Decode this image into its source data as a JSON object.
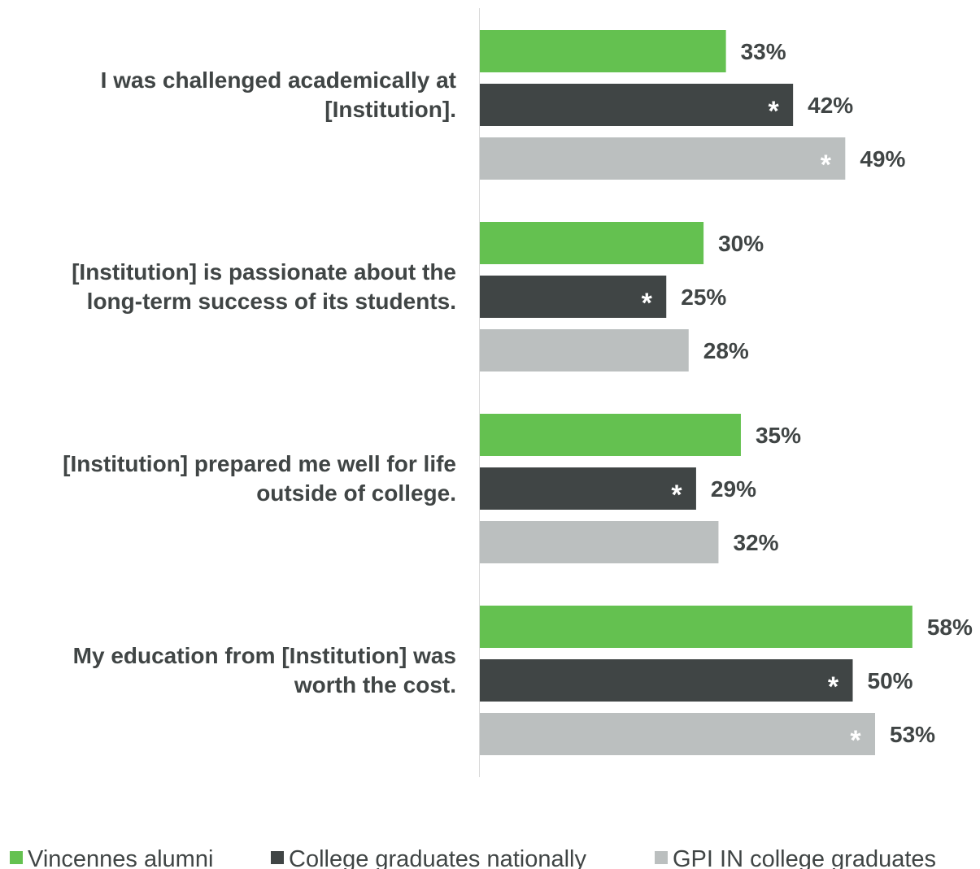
{
  "chart_data": {
    "type": "bar",
    "orientation": "horizontal",
    "categories": [
      [
        "I was challenged academically at",
        "[Institution]."
      ],
      [
        "[Institution] is passionate about the",
        "long-term success of its students."
      ],
      [
        "[Institution] prepared me well for life",
        "outside of college."
      ],
      [
        "My education from [Institution] was",
        "worth the cost."
      ]
    ],
    "series": [
      {
        "name": "Vincennes alumni",
        "color": "#64c150",
        "values": [
          33,
          30,
          35,
          58
        ],
        "labels": [
          "33%",
          "30%",
          "35%",
          "58%"
        ],
        "significant": [
          false,
          false,
          false,
          false
        ]
      },
      {
        "name": "College graduates nationally",
        "color": "#404545",
        "values": [
          42,
          25,
          29,
          50
        ],
        "labels": [
          "42%",
          "25%",
          "29%",
          "50%"
        ],
        "significant": [
          true,
          true,
          true,
          true
        ]
      },
      {
        "name": "GPI IN college graduates",
        "color": "#bbbfbf",
        "values": [
          49,
          28,
          32,
          53
        ],
        "labels": [
          "49%",
          "28%",
          "32%",
          "53%"
        ],
        "significant": [
          true,
          false,
          false,
          true
        ]
      }
    ],
    "significance_marker": "*",
    "xlim": [
      0,
      100
    ],
    "grid": false,
    "legend_position": "bottom"
  }
}
